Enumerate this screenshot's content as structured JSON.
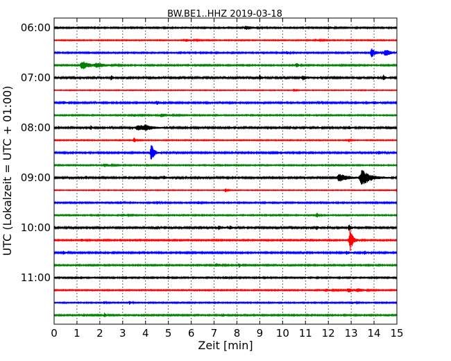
{
  "chart_data": {
    "type": "line",
    "title": "BW.BE1..HHZ 2019-03-18",
    "xlabel": "Zeit  [min]",
    "ylabel": "UTC (Lokalzeit = UTC + 01:00)",
    "xlim": [
      0,
      15
    ],
    "xticks": [
      "0",
      "1",
      "2",
      "3",
      "4",
      "5",
      "6",
      "7",
      "8",
      "9",
      "10",
      "11",
      "12",
      "13",
      "14",
      "15"
    ],
    "yticks": [
      {
        "label": "06:00",
        "row": 0
      },
      {
        "label": "07:00",
        "row": 4
      },
      {
        "label": "08:00",
        "row": 8
      },
      {
        "label": "09:00",
        "row": 12
      },
      {
        "label": "10:00",
        "row": 16
      },
      {
        "label": "11:00",
        "row": 20
      }
    ],
    "grid": true,
    "row_colors": [
      "#000000",
      "#ff0000",
      "#0000ff",
      "#008000"
    ],
    "series": [
      {
        "row": 0,
        "noise": 0.8,
        "events": [
          {
            "x": 8.4,
            "amp": 2.6,
            "w": 0.25
          },
          {
            "x": 12.0,
            "amp": 2.0,
            "w": 0.15
          }
        ]
      },
      {
        "row": 1,
        "noise": 0.6,
        "events": [
          {
            "x": 5.8,
            "amp": 1.6,
            "w": 0.3
          },
          {
            "x": 11.5,
            "amp": 1.2,
            "w": 0.2
          }
        ]
      },
      {
        "row": 2,
        "noise": 0.8,
        "events": [
          {
            "x": 13.9,
            "amp": 6.5,
            "w": 0.15
          },
          {
            "x": 14.5,
            "amp": 5.0,
            "w": 0.2
          },
          {
            "x": 10.2,
            "amp": 2.0,
            "w": 0.1
          }
        ]
      },
      {
        "row": 3,
        "noise": 0.8,
        "events": [
          {
            "x": 1.25,
            "amp": 6.0,
            "w": 0.3
          },
          {
            "x": 1.9,
            "amp": 3.0,
            "w": 0.3
          },
          {
            "x": 10.6,
            "amp": 3.2,
            "w": 0.1
          }
        ]
      },
      {
        "row": 4,
        "noise": 1.0,
        "events": [
          {
            "x": 2.5,
            "amp": 3.0,
            "w": 0.08
          },
          {
            "x": 9.0,
            "amp": 3.2,
            "w": 0.1
          },
          {
            "x": 10.9,
            "amp": 2.8,
            "w": 0.2
          },
          {
            "x": 14.4,
            "amp": 4.0,
            "w": 0.08
          }
        ]
      },
      {
        "row": 5,
        "noise": 0.5,
        "events": [
          {
            "x": 10.5,
            "amp": 2.8,
            "w": 0.06
          }
        ]
      },
      {
        "row": 6,
        "noise": 0.9,
        "events": [
          {
            "x": 0.4,
            "amp": 2.0,
            "w": 0.1
          },
          {
            "x": 4.5,
            "amp": 2.2,
            "w": 0.15
          },
          {
            "x": 14.0,
            "amp": 2.0,
            "w": 0.15
          }
        ]
      },
      {
        "row": 7,
        "noise": 0.7,
        "events": [
          {
            "x": 4.7,
            "amp": 2.5,
            "w": 0.3
          },
          {
            "x": 3.5,
            "amp": 1.5,
            "w": 0.2
          }
        ]
      },
      {
        "row": 8,
        "noise": 1.0,
        "events": [
          {
            "x": 1.6,
            "amp": 3.6,
            "w": 0.05
          },
          {
            "x": 3.7,
            "amp": 3.8,
            "w": 0.35
          },
          {
            "x": 4.0,
            "amp": 3.0,
            "w": 0.2
          },
          {
            "x": 12.9,
            "amp": 2.0,
            "w": 0.1
          }
        ]
      },
      {
        "row": 9,
        "noise": 0.6,
        "events": [
          {
            "x": 3.5,
            "amp": 4.5,
            "w": 0.06
          },
          {
            "x": 12.9,
            "amp": 2.6,
            "w": 0.06
          }
        ]
      },
      {
        "row": 10,
        "noise": 0.9,
        "events": [
          {
            "x": 4.25,
            "amp": 16.0,
            "w": 0.1
          },
          {
            "x": 14.2,
            "amp": 2.5,
            "w": 0.1
          }
        ]
      },
      {
        "row": 11,
        "noise": 0.7,
        "events": [
          {
            "x": 2.2,
            "amp": 2.5,
            "w": 0.2
          }
        ]
      },
      {
        "row": 12,
        "noise": 1.0,
        "events": [
          {
            "x": 1.4,
            "amp": 2.4,
            "w": 0.05
          },
          {
            "x": 4.8,
            "amp": 3.0,
            "w": 0.08
          },
          {
            "x": 12.5,
            "amp": 6.0,
            "w": 0.3
          },
          {
            "x": 13.5,
            "amp": 12.0,
            "w": 0.3
          }
        ]
      },
      {
        "row": 13,
        "noise": 0.5,
        "events": [
          {
            "x": 7.5,
            "amp": 3.0,
            "w": 0.06
          },
          {
            "x": 15.0,
            "amp": 3.0,
            "w": 0.05
          }
        ]
      },
      {
        "row": 14,
        "noise": 0.8,
        "events": [
          {
            "x": 2.9,
            "amp": 2.6,
            "w": 0.08
          },
          {
            "x": 4.5,
            "amp": 2.5,
            "w": 0.08
          },
          {
            "x": 6.3,
            "amp": 2.0,
            "w": 0.1
          }
        ]
      },
      {
        "row": 15,
        "noise": 0.7,
        "events": [
          {
            "x": 11.5,
            "amp": 3.2,
            "w": 0.08
          },
          {
            "x": 3.0,
            "amp": 1.5,
            "w": 0.2
          }
        ]
      },
      {
        "row": 16,
        "noise": 1.0,
        "events": [
          {
            "x": 7.2,
            "amp": 2.6,
            "w": 0.15
          },
          {
            "x": 7.7,
            "amp": 2.6,
            "w": 0.08
          },
          {
            "x": 11.5,
            "amp": 2.5,
            "w": 0.08
          },
          {
            "x": 12.9,
            "amp": 4.0,
            "w": 0.1
          }
        ]
      },
      {
        "row": 17,
        "noise": 0.8,
        "events": [
          {
            "x": 12.95,
            "amp": 18.0,
            "w": 0.12
          },
          {
            "x": 1.2,
            "amp": 1.6,
            "w": 0.1
          }
        ]
      },
      {
        "row": 18,
        "noise": 0.9,
        "events": [
          {
            "x": 0.4,
            "amp": 2.4,
            "w": 0.1
          },
          {
            "x": 12.8,
            "amp": 2.2,
            "w": 0.15
          },
          {
            "x": 13.6,
            "amp": 2.4,
            "w": 0.08
          }
        ]
      },
      {
        "row": 19,
        "noise": 0.8,
        "events": [
          {
            "x": 7.1,
            "amp": 2.2,
            "w": 0.2
          },
          {
            "x": 8.1,
            "amp": 3.0,
            "w": 0.06
          }
        ]
      },
      {
        "row": 20,
        "noise": 0.8,
        "events": [
          {
            "x": 5.0,
            "amp": 1.6,
            "w": 0.1
          },
          {
            "x": 7.5,
            "amp": 1.6,
            "w": 0.15
          },
          {
            "x": 9.0,
            "amp": 1.6,
            "w": 0.1
          }
        ]
      },
      {
        "row": 21,
        "noise": 0.7,
        "events": [
          {
            "x": 11.9,
            "amp": 2.0,
            "w": 0.2
          },
          {
            "x": 12.9,
            "amp": 2.6,
            "w": 0.3
          },
          {
            "x": 13.3,
            "amp": 2.2,
            "w": 0.2
          }
        ]
      },
      {
        "row": 22,
        "noise": 0.7,
        "events": [
          {
            "x": 2.2,
            "amp": 2.0,
            "w": 0.06
          },
          {
            "x": 3.3,
            "amp": 3.0,
            "w": 0.06
          },
          {
            "x": 13.0,
            "amp": 1.8,
            "w": 0.15
          }
        ]
      },
      {
        "row": 23,
        "noise": 0.8,
        "events": [
          {
            "x": 1.3,
            "amp": 2.4,
            "w": 0.06
          },
          {
            "x": 2.2,
            "amp": 3.5,
            "w": 0.06
          },
          {
            "x": 7.4,
            "amp": 2.2,
            "w": 0.08
          }
        ]
      }
    ]
  }
}
